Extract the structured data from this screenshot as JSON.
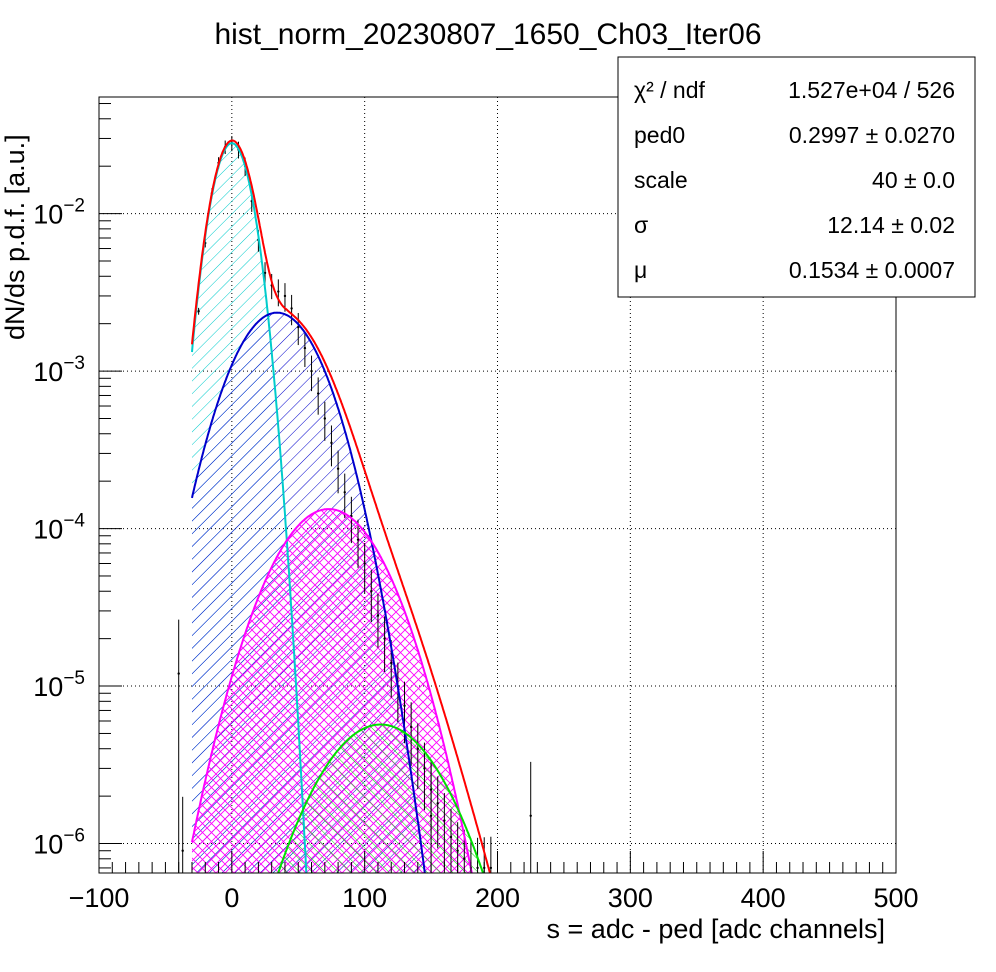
{
  "chart_data": {
    "type": "line",
    "title": "hist_norm_20230807_1650_Ch03_Iter06",
    "xlabel": "s = adc - ped [adc channels]",
    "ylabel": "dN/ds p.d.f. [a.u.]",
    "xlim": [
      -100,
      500
    ],
    "ylim": [
      6.5e-07,
      0.055
    ],
    "yscale": "log",
    "grid": true,
    "x_ticks": [
      "−100",
      "0",
      "100",
      "200",
      "300",
      "400",
      "500"
    ],
    "y_ticks": [
      {
        "base": "10",
        "exp": "−6",
        "value": 1e-06
      },
      {
        "base": "10",
        "exp": "−5",
        "value": 1e-05
      },
      {
        "base": "10",
        "exp": "−4",
        "value": 0.0001
      },
      {
        "base": "10",
        "exp": "−3",
        "value": 0.001
      },
      {
        "base": "10",
        "exp": "−2",
        "value": 0.01
      }
    ],
    "components": [
      {
        "color": "#00cccc",
        "peak": 0,
        "amp": 0.028,
        "sigma": 12.14,
        "hatch": "left"
      },
      {
        "color": "#0000cc",
        "peak": 34,
        "amp": 0.00235,
        "sigma": 27.5,
        "hatch": "left"
      },
      {
        "color": "#ff00ff",
        "peak": 73,
        "amp": 0.000133,
        "sigma": 33.0,
        "hatch": "cross"
      },
      {
        "color": "#00e000",
        "peak": 112,
        "amp": 5.7e-06,
        "sigma": 37.0,
        "hatch": "right"
      }
    ],
    "total_fit": {
      "color": "#ff0000",
      "x_start": -30,
      "x_end": 205
    },
    "histogram": {
      "x": [
        -25,
        -20,
        -15,
        -10,
        -5,
        0,
        5,
        10,
        15,
        20,
        25,
        30,
        35,
        40,
        45,
        50,
        55,
        60,
        65,
        70,
        75,
        80,
        85,
        90,
        95,
        100,
        105,
        110,
        115,
        120,
        125,
        130,
        135,
        140,
        145,
        150,
        155,
        160,
        165,
        170,
        175,
        180,
        185,
        190,
        195
      ],
      "y": [
        0.0024,
        0.0065,
        0.0135,
        0.021,
        0.0265,
        0.028,
        0.0255,
        0.02,
        0.012,
        0.0068,
        0.0042,
        0.0035,
        0.0032,
        0.003,
        0.0025,
        0.0019,
        0.0014,
        0.001,
        0.00072,
        0.0005,
        0.00035,
        0.00024,
        0.00017,
        0.00012,
        8.5e-05,
        6e-05,
        4e-05,
        2.8e-05,
        2e-05,
        1.4e-05,
        1e-05,
        7.5e-06,
        5.5e-06,
        4e-06,
        3e-06,
        2.2e-06,
        1.8e-06,
        1.4e-06,
        1.1e-06,
        9e-07,
        8e-07,
        7e-07,
        7e-07,
        7e-07,
        7e-07
      ]
    },
    "sparse_points": [
      {
        "x": -40,
        "y": 1.2e-05
      },
      {
        "x": -37,
        "y": 9e-07
      },
      {
        "x": 150,
        "y": 1.5e-06
      },
      {
        "x": 225,
        "y": 1.5e-06
      }
    ]
  },
  "stats_box": {
    "rows": [
      {
        "name": "χ² / ndf",
        "value": "1.527e+04 / 526"
      },
      {
        "name": "ped0",
        "value": "0.2997 ± 0.0270"
      },
      {
        "name": "scale",
        "value": "40 ± 0.0"
      },
      {
        "name": "σ",
        "value": "12.14 ± 0.02"
      },
      {
        "name": "μ",
        "value": "0.1534 ± 0.0007"
      }
    ]
  }
}
